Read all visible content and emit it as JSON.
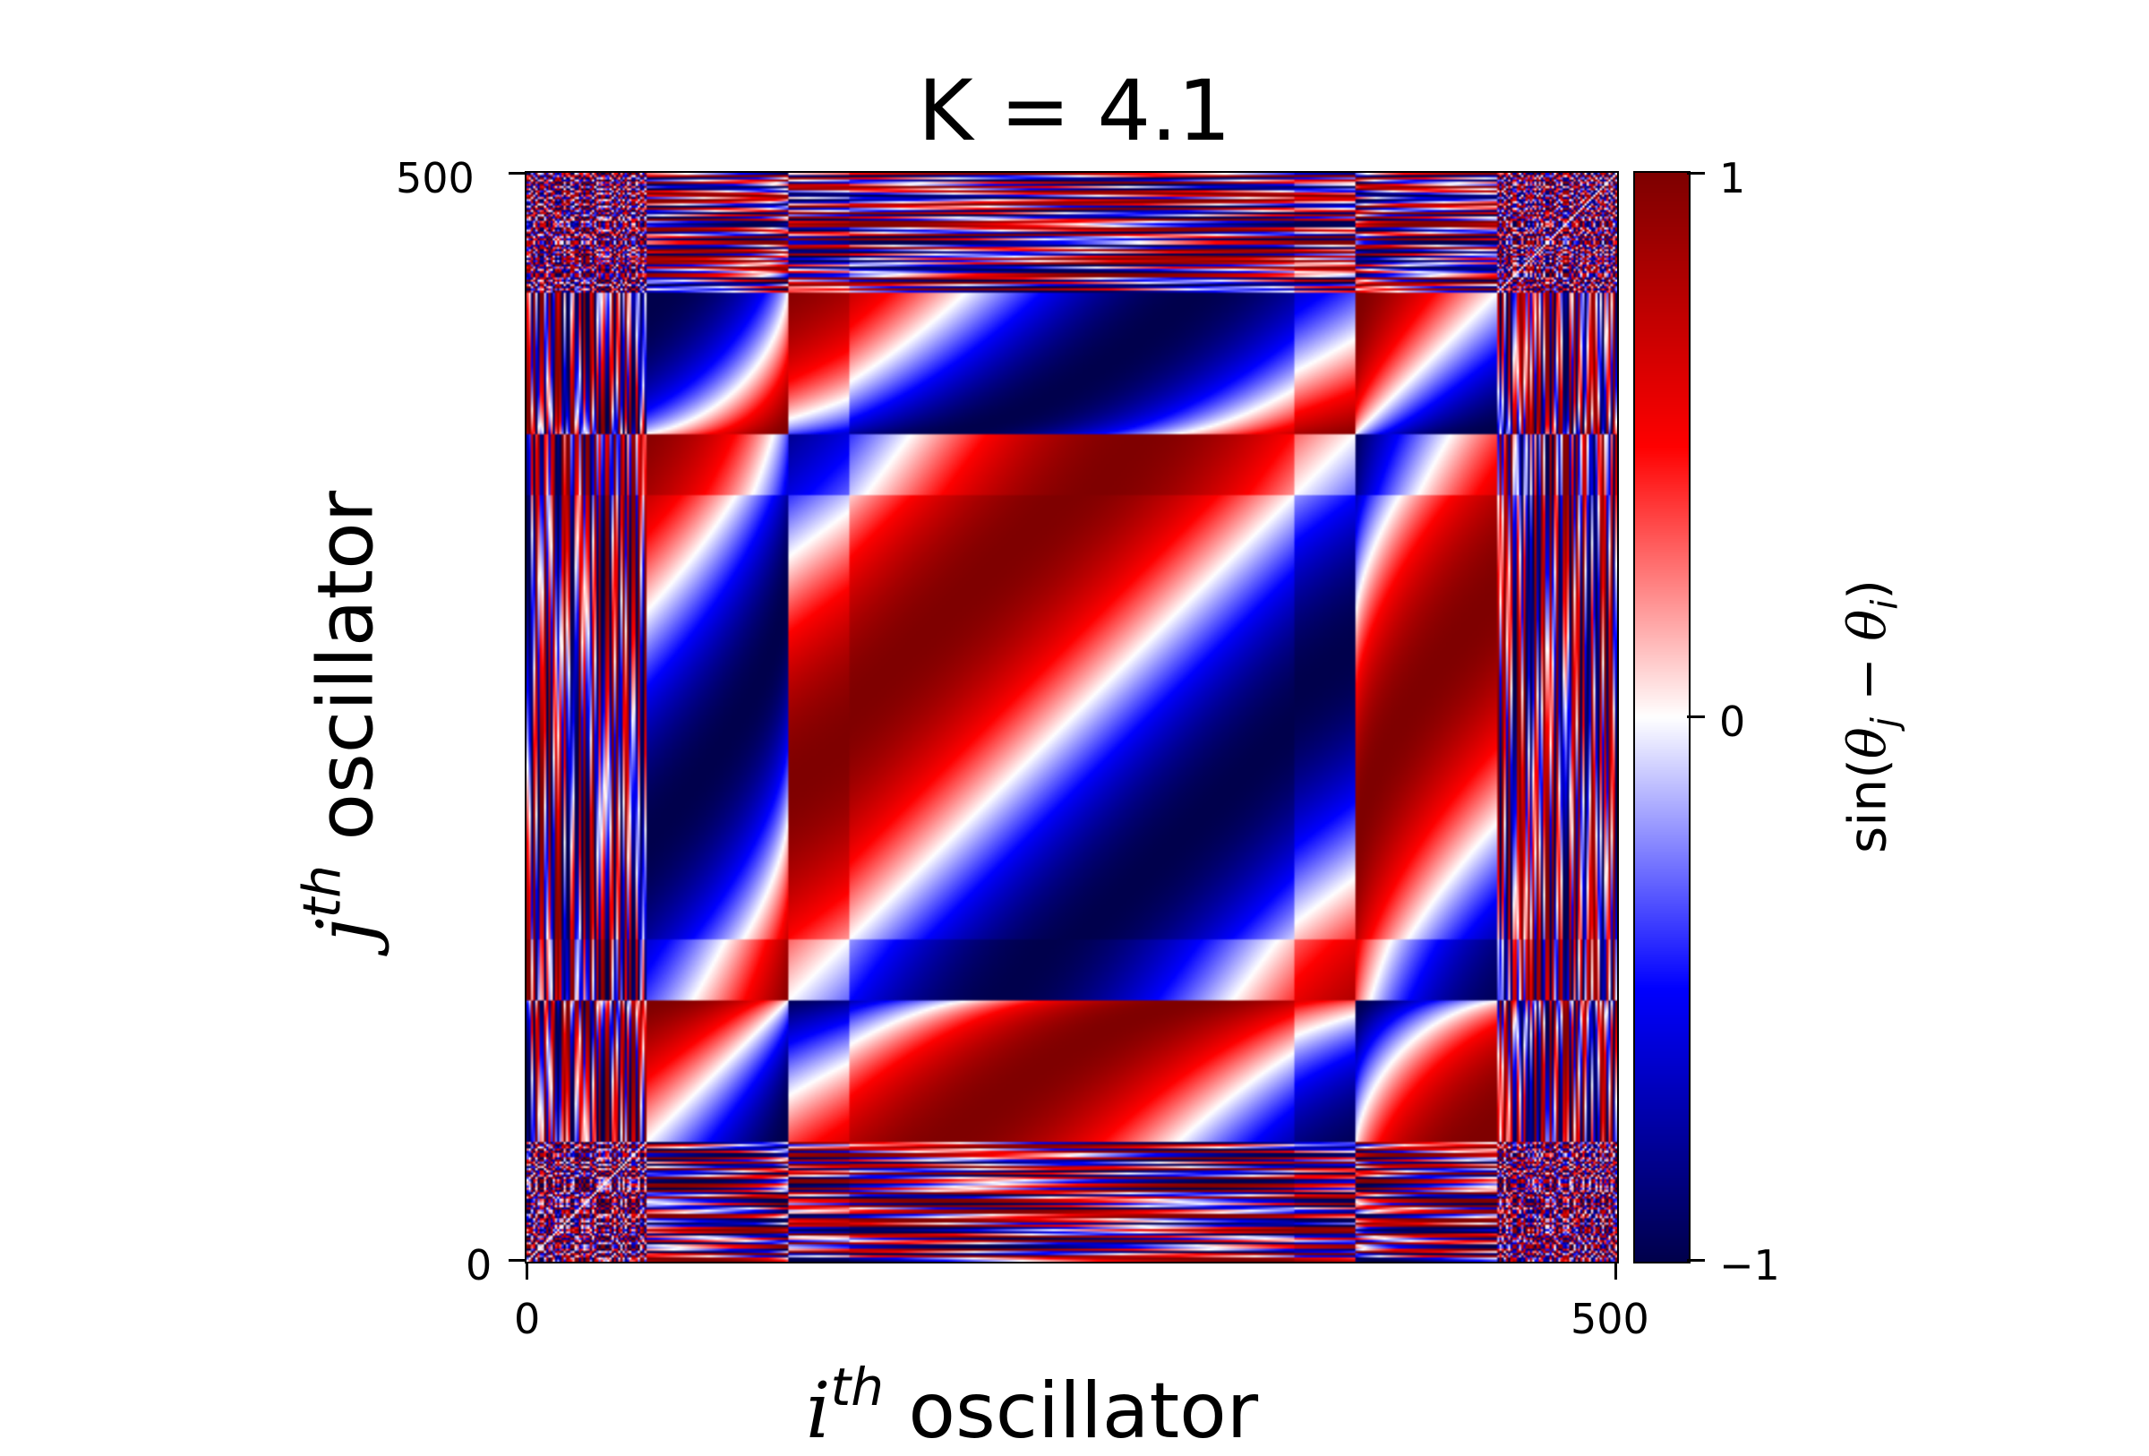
{
  "chart_data": {
    "type": "heatmap",
    "title": "K = 4.1",
    "xlabel": {
      "symbol": "i",
      "sup": "th",
      "text": "oscillator"
    },
    "ylabel": {
      "symbol": "j",
      "sup": "th",
      "text": "oscillator"
    },
    "x_ticks": [
      "0",
      "500"
    ],
    "y_ticks": [
      "0",
      "500"
    ],
    "xlim": [
      0,
      500
    ],
    "ylim": [
      0,
      500
    ],
    "n_oscillators": 500,
    "colorbar": {
      "label": "sin(θj − θi)",
      "label_parts": {
        "prefix": "sin(",
        "theta": "θ",
        "sub_j": "j",
        "minus": " − ",
        "sub_i": "i",
        "suffix": ")"
      },
      "ticks": [
        "1",
        "0",
        "−1"
      ],
      "range": [
        -1,
        1
      ],
      "colormap": "seismic",
      "colors": {
        "low": "#00004c",
        "mid_low": "#0000ff",
        "mid": "#ffffff",
        "mid_high": "#ff0000",
        "high": "#7f0000"
      }
    }
  }
}
